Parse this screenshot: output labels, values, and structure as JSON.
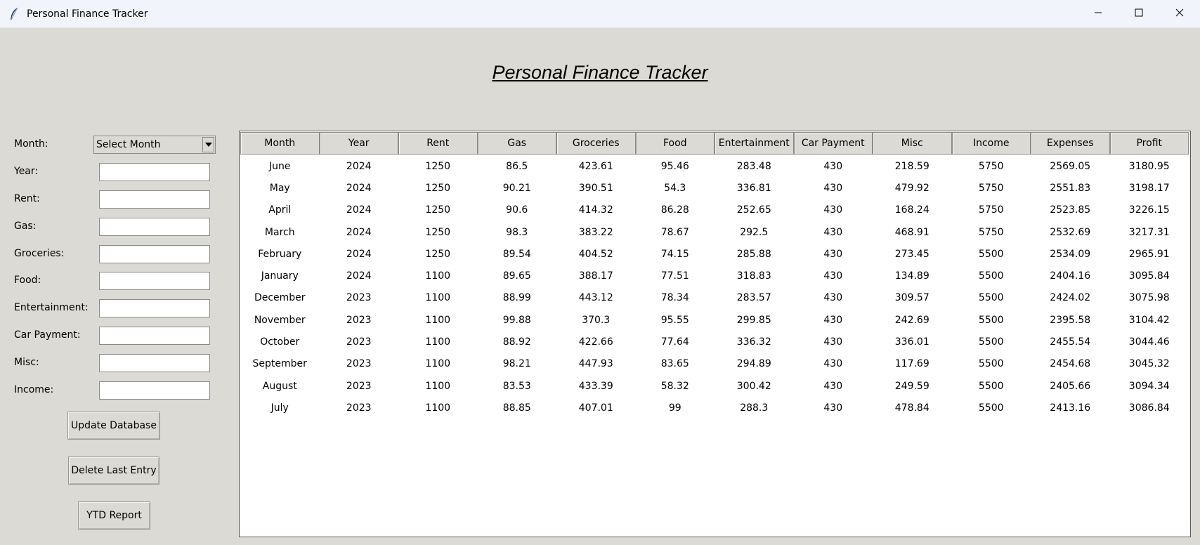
{
  "window": {
    "title": "Personal Finance Tracker"
  },
  "header": {
    "title": "Personal Finance Tracker"
  },
  "form": {
    "month_label": "Month:",
    "month_selected": "Select Month",
    "fields": [
      {
        "label": "Year:",
        "value": ""
      },
      {
        "label": "Rent:",
        "value": ""
      },
      {
        "label": "Gas:",
        "value": ""
      },
      {
        "label": "Groceries:",
        "value": ""
      },
      {
        "label": "Food:",
        "value": ""
      },
      {
        "label": "Entertainment:",
        "value": ""
      },
      {
        "label": "Car Payment:",
        "value": ""
      },
      {
        "label": "Misc:",
        "value": ""
      },
      {
        "label": "Income:",
        "value": ""
      }
    ]
  },
  "buttons": {
    "update": "Update Database",
    "delete": "Delete Last Entry",
    "ytd": "YTD Report"
  },
  "table": {
    "columns": [
      "Month",
      "Year",
      "Rent",
      "Gas",
      "Groceries",
      "Food",
      "Entertainment",
      "Car Payment",
      "Misc",
      "Income",
      "Expenses",
      "Profit"
    ],
    "rows": [
      [
        "June",
        "2024",
        "1250",
        "86.5",
        "423.61",
        "95.46",
        "283.48",
        "430",
        "218.59",
        "5750",
        "2569.05",
        "3180.95"
      ],
      [
        "May",
        "2024",
        "1250",
        "90.21",
        "390.51",
        "54.3",
        "336.81",
        "430",
        "479.92",
        "5750",
        "2551.83",
        "3198.17"
      ],
      [
        "April",
        "2024",
        "1250",
        "90.6",
        "414.32",
        "86.28",
        "252.65",
        "430",
        "168.24",
        "5750",
        "2523.85",
        "3226.15"
      ],
      [
        "March",
        "2024",
        "1250",
        "98.3",
        "383.22",
        "78.67",
        "292.5",
        "430",
        "468.91",
        "5750",
        "2532.69",
        "3217.31"
      ],
      [
        "February",
        "2024",
        "1250",
        "89.54",
        "404.52",
        "74.15",
        "285.88",
        "430",
        "273.45",
        "5500",
        "2534.09",
        "2965.91"
      ],
      [
        "January",
        "2024",
        "1100",
        "89.65",
        "388.17",
        "77.51",
        "318.83",
        "430",
        "134.89",
        "5500",
        "2404.16",
        "3095.84"
      ],
      [
        "December",
        "2023",
        "1100",
        "88.99",
        "443.12",
        "78.34",
        "283.57",
        "430",
        "309.57",
        "5500",
        "2424.02",
        "3075.98"
      ],
      [
        "November",
        "2023",
        "1100",
        "99.88",
        "370.3",
        "95.55",
        "299.85",
        "430",
        "242.69",
        "5500",
        "2395.58",
        "3104.42"
      ],
      [
        "October",
        "2023",
        "1100",
        "88.92",
        "422.66",
        "77.64",
        "336.32",
        "430",
        "336.01",
        "5500",
        "2455.54",
        "3044.46"
      ],
      [
        "September",
        "2023",
        "1100",
        "98.21",
        "447.93",
        "83.65",
        "294.89",
        "430",
        "117.69",
        "5500",
        "2454.68",
        "3045.32"
      ],
      [
        "August",
        "2023",
        "1100",
        "83.53",
        "433.39",
        "58.32",
        "300.42",
        "430",
        "249.59",
        "5500",
        "2405.66",
        "3094.34"
      ],
      [
        "July",
        "2023",
        "1100",
        "88.85",
        "407.01",
        "99",
        "288.3",
        "430",
        "478.84",
        "5500",
        "2413.16",
        "3086.84"
      ]
    ]
  }
}
